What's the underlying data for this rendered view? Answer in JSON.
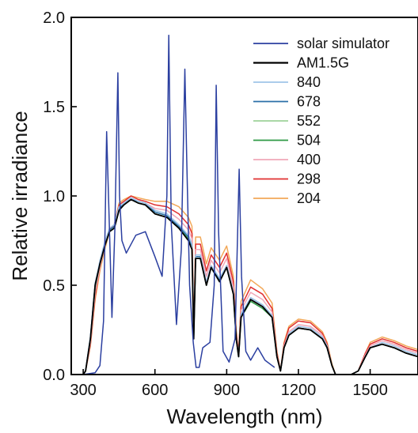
{
  "chart_data": {
    "type": "line",
    "title": "",
    "xlabel": "Wavelength (nm)",
    "ylabel": "Relative irradiance",
    "xlim": [
      250,
      1700
    ],
    "ylim": [
      0,
      2.0
    ],
    "xticks": [
      300,
      600,
      900,
      1200,
      1500
    ],
    "xtick_labels": [
      "300",
      "600",
      "900",
      "1200",
      "1500"
    ],
    "yticks": [
      0,
      0.5,
      1.0,
      1.5,
      2.0
    ],
    "ytick_labels": [
      "0.0",
      "0.5",
      "1.0",
      "1.5",
      "2.0"
    ],
    "grid": false,
    "legend_position": "top-right",
    "series": [
      {
        "name": "solar simulator",
        "color": "#2b3fa0",
        "x": [
          300,
          350,
          370,
          385,
          398,
          408,
          420,
          432,
          445,
          452,
          462,
          480,
          520,
          560,
          600,
          630,
          650,
          658,
          668,
          690,
          710,
          725,
          733,
          745,
          760,
          772,
          785,
          800,
          830,
          848,
          856,
          866,
          885,
          910,
          935,
          952,
          962,
          980,
          1000,
          1030,
          1060,
          1090,
          1100
        ],
        "y": [
          0.0,
          0.01,
          0.05,
          0.3,
          1.36,
          0.9,
          0.32,
          0.8,
          1.69,
          1.0,
          0.75,
          0.68,
          0.78,
          0.8,
          0.66,
          0.55,
          1.0,
          1.9,
          0.85,
          0.28,
          0.7,
          1.71,
          1.2,
          0.5,
          0.18,
          0.04,
          0.04,
          0.15,
          0.18,
          0.5,
          1.62,
          0.8,
          0.13,
          0.07,
          0.2,
          1.15,
          0.55,
          0.13,
          0.08,
          0.15,
          0.08,
          0.05,
          0.04
        ]
      },
      {
        "name": "AM1.5G",
        "color": "#000000",
        "x": [
          300,
          310,
          330,
          350,
          370,
          390,
          410,
          430,
          450,
          470,
          500,
          530,
          560,
          600,
          650,
          700,
          740,
          755,
          762,
          770,
          790,
          815,
          835,
          870,
          900,
          928,
          940,
          950,
          960,
          1000,
          1050,
          1090,
          1110,
          1125,
          1140,
          1160,
          1200,
          1250,
          1300,
          1320,
          1340,
          1355,
          1380,
          1420,
          1450,
          1480,
          1500,
          1550,
          1600,
          1650,
          1700
        ],
        "y": [
          0.0,
          0.02,
          0.2,
          0.5,
          0.62,
          0.72,
          0.8,
          0.82,
          0.92,
          0.95,
          0.98,
          0.96,
          0.95,
          0.9,
          0.88,
          0.82,
          0.75,
          0.7,
          0.2,
          0.65,
          0.65,
          0.5,
          0.6,
          0.52,
          0.6,
          0.45,
          0.2,
          0.1,
          0.32,
          0.42,
          0.38,
          0.32,
          0.1,
          0.02,
          0.15,
          0.22,
          0.26,
          0.25,
          0.2,
          0.15,
          0.05,
          0.0,
          0.0,
          0.0,
          0.02,
          0.1,
          0.15,
          0.17,
          0.15,
          0.12,
          0.1
        ]
      },
      {
        "name": "840",
        "color": "#9fc4e8",
        "x": [
          300,
          310,
          330,
          350,
          370,
          390,
          410,
          430,
          450,
          470,
          500,
          530,
          560,
          600,
          650,
          700,
          740,
          755,
          762,
          770,
          790,
          815,
          835,
          870,
          900,
          928,
          940,
          950,
          960,
          1000,
          1050,
          1090,
          1110,
          1125,
          1140,
          1160,
          1200,
          1250,
          1300,
          1320,
          1340,
          1355,
          1380,
          1420,
          1450,
          1480,
          1500,
          1550,
          1600,
          1650,
          1700
        ],
        "y": [
          0.0,
          0.02,
          0.21,
          0.5,
          0.64,
          0.74,
          0.82,
          0.84,
          0.94,
          0.96,
          0.99,
          0.97,
          0.96,
          0.92,
          0.9,
          0.84,
          0.78,
          0.73,
          0.21,
          0.67,
          0.67,
          0.52,
          0.61,
          0.54,
          0.61,
          0.46,
          0.2,
          0.1,
          0.34,
          0.43,
          0.39,
          0.33,
          0.1,
          0.02,
          0.15,
          0.23,
          0.27,
          0.26,
          0.21,
          0.16,
          0.05,
          0.0,
          0.0,
          0.0,
          0.02,
          0.1,
          0.15,
          0.18,
          0.16,
          0.13,
          0.11
        ]
      },
      {
        "name": "678",
        "color": "#2a6fa8",
        "x": [
          300,
          310,
          330,
          350,
          370,
          390,
          410,
          430,
          450,
          470,
          500,
          530,
          560,
          600,
          650,
          700,
          740,
          755,
          762,
          770,
          790,
          815,
          835,
          870,
          900,
          928,
          940,
          950,
          960,
          1000,
          1050,
          1090,
          1110,
          1125,
          1140,
          1160,
          1200,
          1250,
          1300,
          1320,
          1340,
          1355,
          1380,
          1420,
          1450,
          1480,
          1500,
          1550,
          1600,
          1650,
          1700
        ],
        "y": [
          0.0,
          0.02,
          0.21,
          0.51,
          0.63,
          0.73,
          0.81,
          0.83,
          0.93,
          0.96,
          0.98,
          0.97,
          0.96,
          0.91,
          0.89,
          0.83,
          0.77,
          0.72,
          0.21,
          0.66,
          0.66,
          0.51,
          0.6,
          0.53,
          0.61,
          0.46,
          0.2,
          0.1,
          0.33,
          0.43,
          0.39,
          0.33,
          0.1,
          0.02,
          0.15,
          0.22,
          0.26,
          0.25,
          0.2,
          0.15,
          0.05,
          0.0,
          0.0,
          0.0,
          0.02,
          0.1,
          0.15,
          0.17,
          0.15,
          0.12,
          0.1
        ]
      },
      {
        "name": "552",
        "color": "#9ed39a",
        "x": [
          300,
          310,
          330,
          350,
          370,
          390,
          410,
          430,
          450,
          470,
          500,
          530,
          560,
          600,
          650,
          700,
          740,
          755,
          762,
          770,
          790,
          815,
          835,
          870,
          900,
          928,
          940,
          950,
          960,
          1000,
          1050,
          1090,
          1110,
          1125,
          1140,
          1160,
          1200,
          1250,
          1300,
          1320,
          1340,
          1355,
          1380,
          1420,
          1450,
          1480,
          1500,
          1550,
          1600,
          1650,
          1700
        ],
        "y": [
          0.0,
          0.02,
          0.2,
          0.49,
          0.62,
          0.72,
          0.8,
          0.83,
          0.93,
          0.95,
          0.98,
          0.96,
          0.95,
          0.91,
          0.89,
          0.83,
          0.77,
          0.72,
          0.2,
          0.66,
          0.66,
          0.51,
          0.6,
          0.53,
          0.6,
          0.45,
          0.2,
          0.1,
          0.33,
          0.42,
          0.38,
          0.32,
          0.1,
          0.02,
          0.15,
          0.22,
          0.26,
          0.25,
          0.2,
          0.15,
          0.05,
          0.0,
          0.0,
          0.0,
          0.02,
          0.1,
          0.15,
          0.17,
          0.15,
          0.12,
          0.1
        ]
      },
      {
        "name": "504",
        "color": "#2e9a45",
        "x": [
          300,
          310,
          330,
          350,
          370,
          390,
          410,
          430,
          450,
          470,
          500,
          530,
          560,
          600,
          650,
          700,
          740,
          755,
          762,
          770,
          790,
          815,
          835,
          870,
          900,
          928,
          940,
          950,
          960,
          1000,
          1050,
          1090,
          1110,
          1125,
          1140,
          1160,
          1200,
          1250,
          1300,
          1320,
          1340,
          1355,
          1380,
          1420,
          1450,
          1480,
          1500,
          1550,
          1600,
          1650,
          1700
        ],
        "y": [
          0.0,
          0.02,
          0.2,
          0.49,
          0.62,
          0.72,
          0.8,
          0.82,
          0.92,
          0.95,
          0.98,
          0.96,
          0.95,
          0.9,
          0.88,
          0.82,
          0.76,
          0.71,
          0.2,
          0.65,
          0.65,
          0.5,
          0.6,
          0.52,
          0.6,
          0.45,
          0.2,
          0.1,
          0.32,
          0.41,
          0.37,
          0.32,
          0.1,
          0.02,
          0.15,
          0.22,
          0.26,
          0.25,
          0.2,
          0.15,
          0.05,
          0.0,
          0.0,
          0.0,
          0.02,
          0.1,
          0.15,
          0.17,
          0.15,
          0.12,
          0.1
        ]
      },
      {
        "name": "400",
        "color": "#f0a8b8",
        "x": [
          300,
          310,
          330,
          350,
          370,
          390,
          410,
          430,
          450,
          470,
          500,
          530,
          560,
          600,
          650,
          700,
          740,
          755,
          762,
          770,
          790,
          815,
          835,
          870,
          900,
          928,
          940,
          950,
          960,
          1000,
          1050,
          1090,
          1110,
          1125,
          1140,
          1160,
          1200,
          1250,
          1300,
          1320,
          1340,
          1355,
          1380,
          1420,
          1450,
          1480,
          1500,
          1550,
          1600,
          1650,
          1700
        ],
        "y": [
          0.0,
          0.02,
          0.18,
          0.46,
          0.6,
          0.72,
          0.8,
          0.83,
          0.94,
          0.96,
          0.99,
          0.97,
          0.96,
          0.93,
          0.92,
          0.87,
          0.81,
          0.76,
          0.22,
          0.7,
          0.7,
          0.55,
          0.64,
          0.57,
          0.65,
          0.49,
          0.22,
          0.11,
          0.36,
          0.46,
          0.42,
          0.35,
          0.11,
          0.02,
          0.16,
          0.24,
          0.28,
          0.27,
          0.22,
          0.16,
          0.05,
          0.0,
          0.0,
          0.0,
          0.02,
          0.11,
          0.16,
          0.19,
          0.17,
          0.14,
          0.12
        ]
      },
      {
        "name": "298",
        "color": "#e03030",
        "x": [
          300,
          310,
          330,
          350,
          370,
          390,
          410,
          430,
          450,
          470,
          500,
          530,
          560,
          600,
          650,
          700,
          740,
          755,
          762,
          770,
          790,
          815,
          835,
          870,
          900,
          928,
          940,
          950,
          960,
          1000,
          1050,
          1090,
          1110,
          1125,
          1140,
          1160,
          1200,
          1250,
          1300,
          1320,
          1340,
          1355,
          1380,
          1420,
          1450,
          1480,
          1500,
          1550,
          1600,
          1650,
          1700
        ],
        "y": [
          0.0,
          0.02,
          0.17,
          0.44,
          0.6,
          0.72,
          0.81,
          0.84,
          0.95,
          0.97,
          1.0,
          0.98,
          0.97,
          0.95,
          0.94,
          0.9,
          0.84,
          0.79,
          0.23,
          0.73,
          0.73,
          0.58,
          0.67,
          0.6,
          0.68,
          0.52,
          0.23,
          0.12,
          0.38,
          0.49,
          0.45,
          0.37,
          0.12,
          0.02,
          0.17,
          0.26,
          0.3,
          0.29,
          0.23,
          0.17,
          0.05,
          0.0,
          0.0,
          0.0,
          0.02,
          0.12,
          0.17,
          0.2,
          0.18,
          0.15,
          0.13
        ]
      },
      {
        "name": "204",
        "color": "#f2a858",
        "x": [
          300,
          310,
          330,
          350,
          370,
          390,
          410,
          430,
          450,
          470,
          500,
          530,
          560,
          600,
          650,
          700,
          740,
          755,
          762,
          770,
          790,
          815,
          835,
          870,
          900,
          928,
          940,
          950,
          960,
          1000,
          1050,
          1090,
          1110,
          1125,
          1140,
          1160,
          1200,
          1250,
          1300,
          1320,
          1340,
          1355,
          1380,
          1420,
          1450,
          1480,
          1500,
          1550,
          1600,
          1650,
          1700
        ],
        "y": [
          0.0,
          0.02,
          0.16,
          0.42,
          0.58,
          0.7,
          0.8,
          0.84,
          0.96,
          0.98,
          1.0,
          0.99,
          0.98,
          0.97,
          0.97,
          0.94,
          0.88,
          0.83,
          0.24,
          0.77,
          0.77,
          0.62,
          0.71,
          0.64,
          0.72,
          0.55,
          0.25,
          0.12,
          0.41,
          0.53,
          0.48,
          0.4,
          0.13,
          0.02,
          0.18,
          0.27,
          0.31,
          0.3,
          0.24,
          0.18,
          0.06,
          0.0,
          0.0,
          0.0,
          0.02,
          0.12,
          0.18,
          0.21,
          0.19,
          0.16,
          0.14
        ]
      }
    ]
  }
}
